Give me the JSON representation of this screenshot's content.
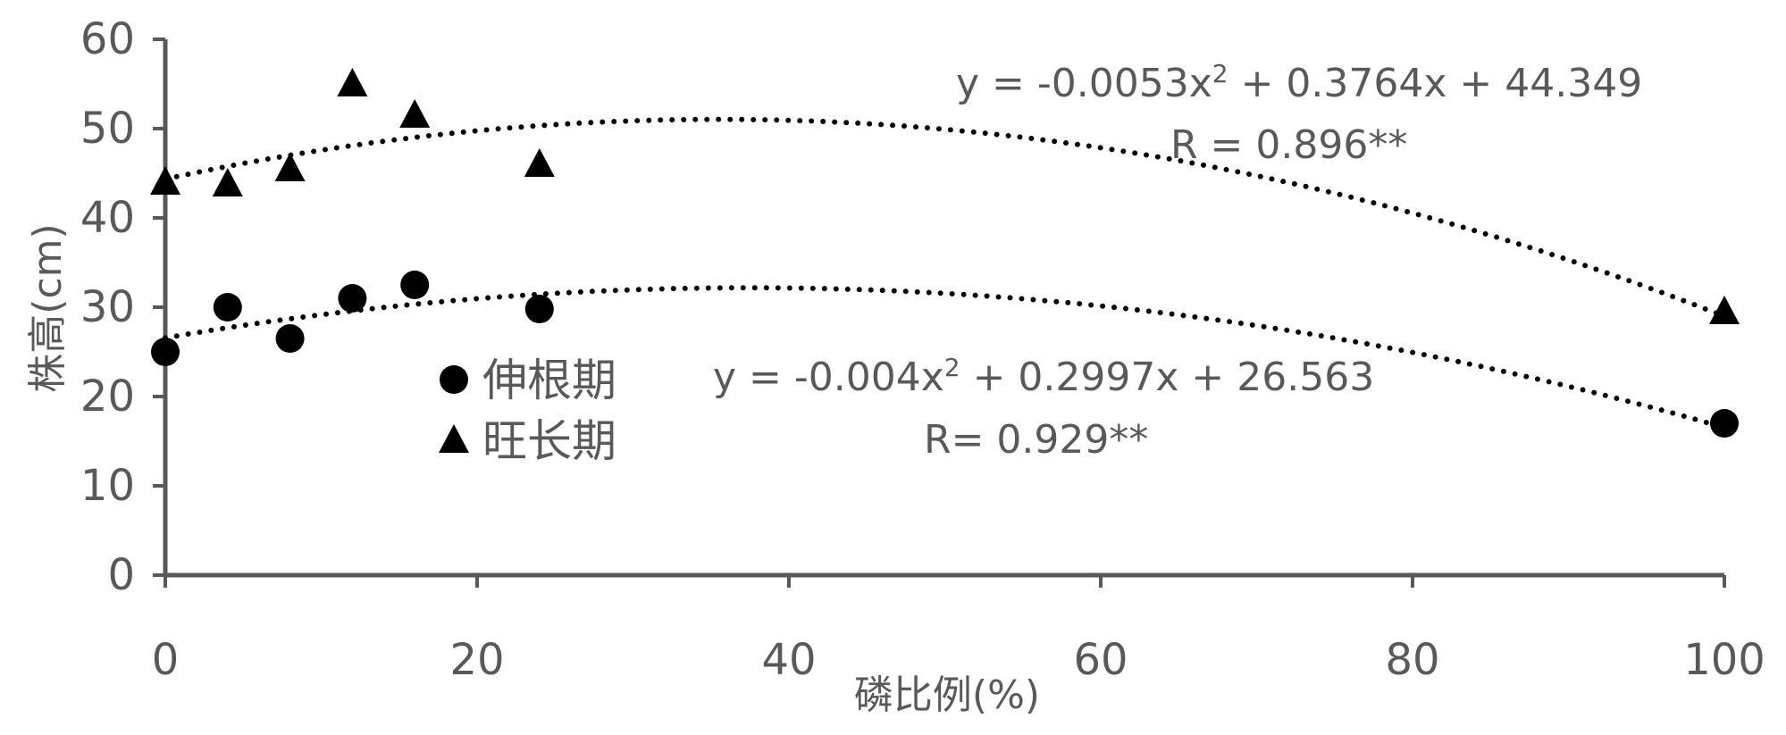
{
  "chart_data": {
    "type": "scatter",
    "title": "",
    "xlabel": "磷比例(%)",
    "ylabel": "株高(cm)",
    "xlim": [
      0,
      100
    ],
    "ylim": [
      0,
      60
    ],
    "x_ticks": [
      "0",
      "20",
      "40",
      "60",
      "80",
      "100"
    ],
    "y_ticks": [
      "0",
      "10",
      "20",
      "30",
      "40",
      "50",
      "60"
    ],
    "grid": false,
    "legend_position": "center-left",
    "series": [
      {
        "name": "伸根期",
        "marker": "circle",
        "color": "#000000",
        "points": [
          [
            0,
            25
          ],
          [
            4,
            30
          ],
          [
            8,
            26.5
          ],
          [
            12,
            31
          ],
          [
            16,
            32.5
          ],
          [
            24,
            29.8
          ],
          [
            100,
            17
          ]
        ],
        "trendline": {
          "type": "polynomial-2",
          "coefficients": [
            -0.004,
            0.2997,
            26.563
          ],
          "equation": "y = -0.004x² + 0.2997x + 26.563",
          "r_text": "R= 0.929**"
        }
      },
      {
        "name": "旺长期",
        "marker": "triangle",
        "color": "#000000",
        "points": [
          [
            0,
            44
          ],
          [
            4,
            43.8
          ],
          [
            8,
            45.5
          ],
          [
            12,
            55
          ],
          [
            16,
            51.5
          ],
          [
            24,
            46
          ],
          [
            100,
            29.5
          ]
        ],
        "trendline": {
          "type": "polynomial-2",
          "coefficients": [
            -0.0053,
            0.3764,
            44.349
          ],
          "equation": "y = -0.0053x² + 0.3764x + 44.349",
          "r_text": "R = 0.896**"
        }
      }
    ]
  }
}
